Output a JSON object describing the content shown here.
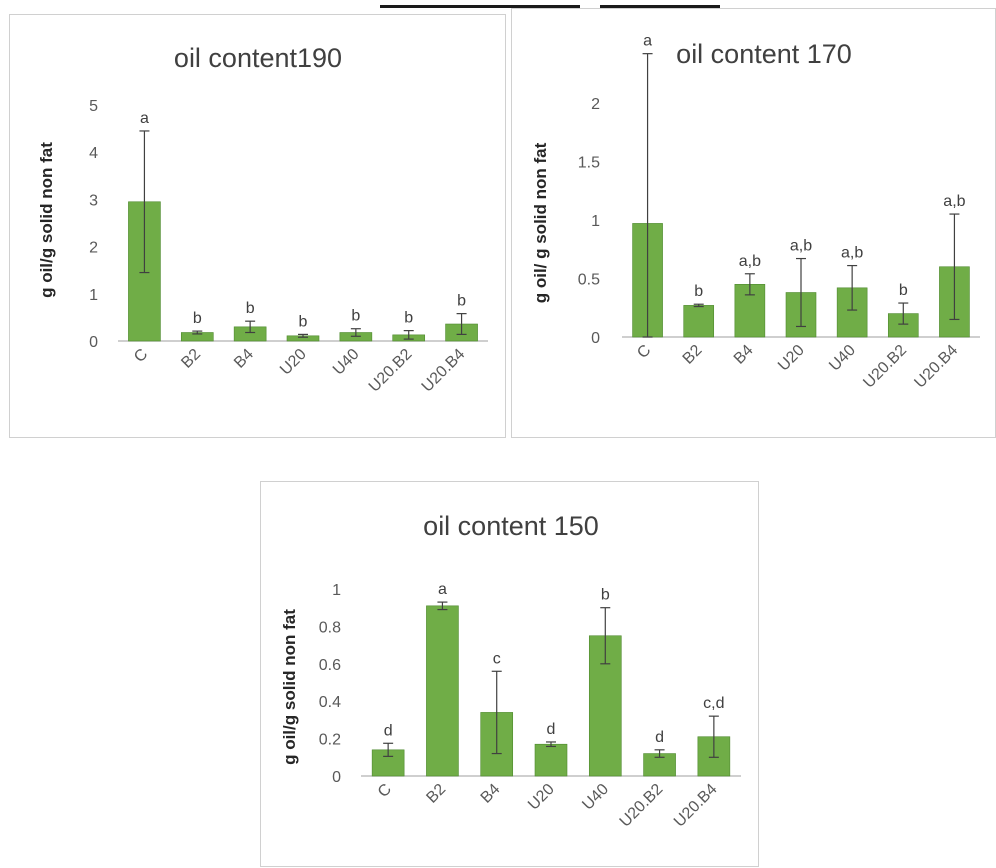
{
  "colors": {
    "bar": "#70ad47",
    "bar_edge": "#4e8a2e",
    "error_bar": "#404040",
    "axis": "#bfbfbf"
  },
  "chart_data": [
    {
      "type": "bar",
      "title": "oil content190",
      "xlabel": "",
      "ylabel": "g oil/g solid non fat",
      "categories": [
        "C",
        "B2",
        "B4",
        "U20",
        "U40",
        "U20.B2",
        "U20.B4"
      ],
      "values": [
        2.95,
        0.18,
        0.3,
        0.11,
        0.18,
        0.13,
        0.36
      ],
      "error": [
        1.5,
        0.03,
        0.12,
        0.03,
        0.08,
        0.09,
        0.22
      ],
      "significance": [
        "a",
        "b",
        "b",
        "b",
        "b",
        "b",
        "b"
      ],
      "ylim": [
        0,
        5
      ],
      "yticks": [
        "0",
        "1",
        "2",
        "3",
        "4",
        "5"
      ],
      "grid": false,
      "legend": "none"
    },
    {
      "type": "bar",
      "title": "oil content 170",
      "xlabel": "",
      "ylabel": "g oil/ g solid non fat",
      "categories": [
        "C",
        "B2",
        "B4",
        "U20",
        "U40",
        "U20.B2",
        "U20.B4"
      ],
      "values": [
        0.97,
        0.27,
        0.45,
        0.38,
        0.42,
        0.2,
        0.6
      ],
      "error": [
        1.45,
        0.01,
        0.09,
        0.29,
        0.19,
        0.09,
        0.45
      ],
      "significance": [
        "a",
        "b",
        "a,b",
        "a,b",
        "a,b",
        "b",
        "a,b"
      ],
      "ylim": [
        0,
        2.4
      ],
      "yticks": [
        "0",
        "0.5",
        "1",
        "1.5",
        "2"
      ],
      "grid": false,
      "legend": "none"
    },
    {
      "type": "bar",
      "title": "oil content 150",
      "xlabel": "",
      "ylabel": "g oil/g solid non fat",
      "categories": [
        "C",
        "B2",
        "B4",
        "U20",
        "U40",
        "U20.B2",
        "U20.B4"
      ],
      "values": [
        0.14,
        0.91,
        0.34,
        0.17,
        0.75,
        0.12,
        0.21
      ],
      "error": [
        0.035,
        0.02,
        0.22,
        0.012,
        0.15,
        0.02,
        0.11
      ],
      "significance": [
        "d",
        "a",
        "c",
        "d",
        "b",
        "d",
        "c,d"
      ],
      "ylim": [
        0,
        1
      ],
      "yticks": [
        "0",
        "0.2",
        "0.4",
        "0.6",
        "0.8",
        "1"
      ],
      "grid": false,
      "legend": "none"
    }
  ]
}
